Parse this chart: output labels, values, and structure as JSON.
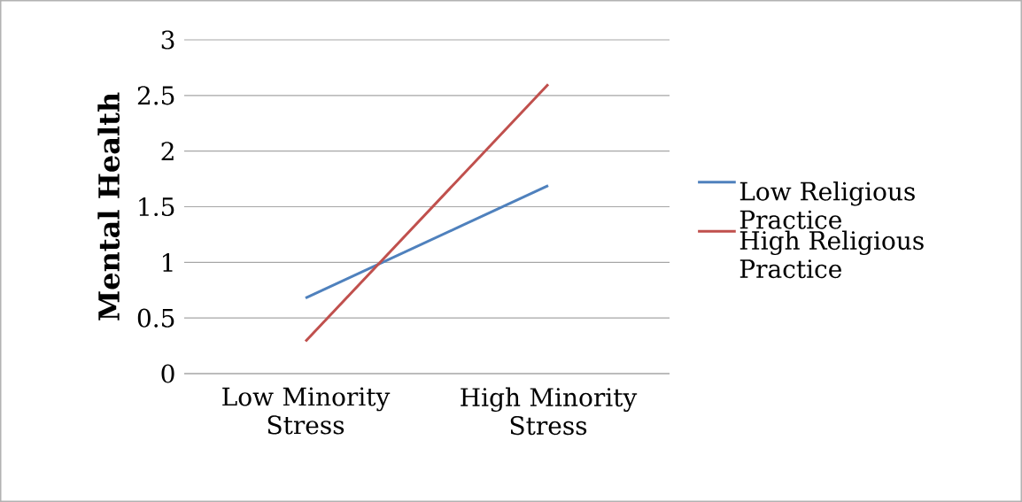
{
  "chart_data": {
    "type": "line",
    "ylabel": "Mental Health",
    "categories": [
      "Low Minority Stress",
      "High Minority Stress"
    ],
    "series": [
      {
        "name": "Low Religious Practice",
        "color": "#4f81bd",
        "values": [
          0.68,
          1.69
        ]
      },
      {
        "name": "High Religious Practice",
        "color": "#c0504d",
        "values": [
          0.29,
          2.6
        ]
      }
    ],
    "ylim": [
      0,
      3
    ],
    "yticks": [
      0,
      0.5,
      1,
      1.5,
      2,
      2.5,
      3
    ],
    "grid": "y",
    "legend": "right"
  }
}
